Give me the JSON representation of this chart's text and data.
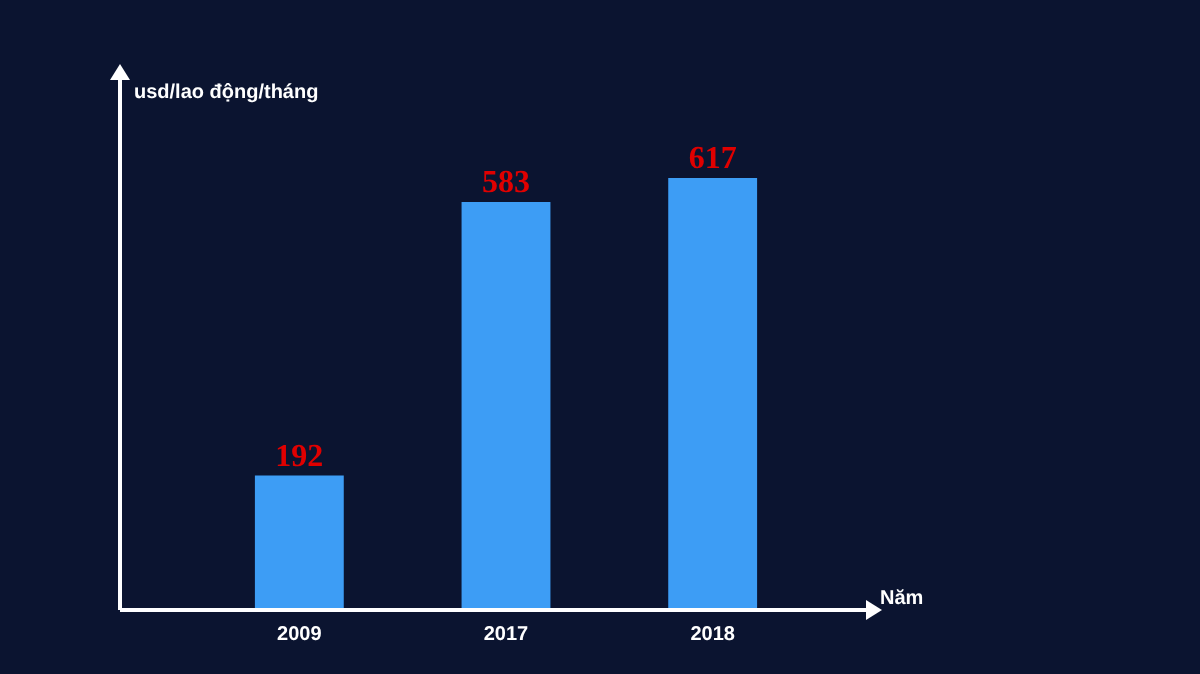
{
  "chart_data": {
    "type": "bar",
    "xlabel": "Năm",
    "ylabel": "usd/lao động/tháng",
    "categories": [
      "2009",
      "2017",
      "2018"
    ],
    "values": [
      192,
      583,
      617
    ],
    "color": "#3d9df5",
    "data_labels": true,
    "grid": false,
    "legend": false,
    "tick_labels": "x"
  }
}
